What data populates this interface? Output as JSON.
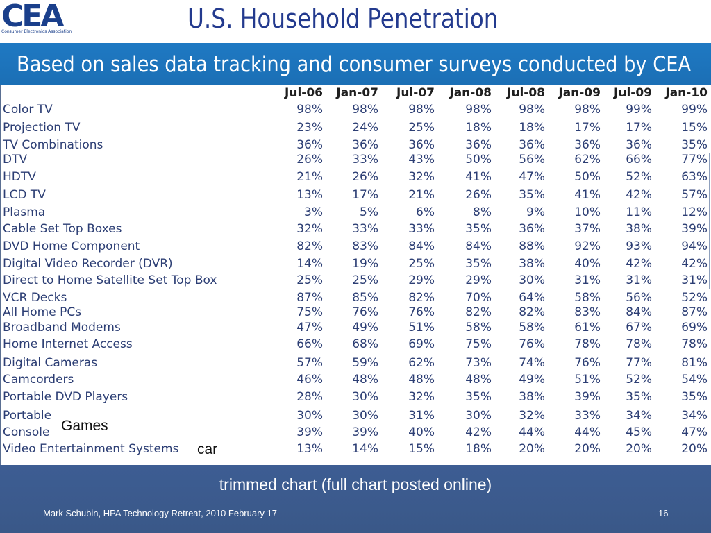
{
  "header": {
    "logo_text": "CEA",
    "logo_subtext": "Consumer Electronics Association",
    "title": "U.S. Household Penetration"
  },
  "banner": {
    "text": "Based on sales data tracking and consumer surveys conducted by CEA"
  },
  "table": {
    "columns": [
      "Jul-06",
      "Jan-07",
      "Jul-07",
      "Jan-08",
      "Jul-08",
      "Jan-09",
      "Jul-09",
      "Jan-10"
    ],
    "rows": [
      {
        "label": "Color TV",
        "values": [
          "98%",
          "98%",
          "98%",
          "98%",
          "98%",
          "98%",
          "99%",
          "99%"
        ]
      },
      {
        "label": "Projection TV",
        "values": [
          "23%",
          "24%",
          "25%",
          "18%",
          "18%",
          "17%",
          "17%",
          "15%"
        ]
      },
      {
        "label": "TV Combinations",
        "values": [
          "36%",
          "36%",
          "36%",
          "36%",
          "36%",
          "36%",
          "36%",
          "35%"
        ]
      },
      {
        "label": "DTV",
        "values": [
          "26%",
          "33%",
          "43%",
          "50%",
          "56%",
          "62%",
          "66%",
          "77%"
        ]
      },
      {
        "label": "HDTV",
        "values": [
          "21%",
          "26%",
          "32%",
          "41%",
          "47%",
          "50%",
          "52%",
          "63%"
        ]
      },
      {
        "label": "LCD TV",
        "values": [
          "13%",
          "17%",
          "21%",
          "26%",
          "35%",
          "41%",
          "42%",
          "57%"
        ]
      },
      {
        "label": "Plasma",
        "values": [
          "3%",
          "5%",
          "6%",
          "8%",
          "9%",
          "10%",
          "11%",
          "12%"
        ]
      },
      {
        "label": "Cable Set Top Boxes",
        "values": [
          "32%",
          "33%",
          "33%",
          "35%",
          "36%",
          "37%",
          "38%",
          "39%"
        ]
      },
      {
        "label": "DVD Home Component",
        "values": [
          "82%",
          "83%",
          "84%",
          "84%",
          "88%",
          "92%",
          "93%",
          "94%"
        ]
      },
      {
        "label": "Digital Video Recorder (DVR)",
        "values": [
          "14%",
          "19%",
          "25%",
          "35%",
          "38%",
          "40%",
          "42%",
          "42%"
        ]
      },
      {
        "label": "Direct to Home Satellite Set Top Box",
        "values": [
          "25%",
          "25%",
          "29%",
          "29%",
          "30%",
          "31%",
          "31%",
          "31%"
        ]
      },
      {
        "label": "VCR Decks",
        "values": [
          "87%",
          "85%",
          "82%",
          "70%",
          "64%",
          "58%",
          "56%",
          "52%"
        ]
      },
      {
        "label": "All Home PCs",
        "values": [
          "75%",
          "76%",
          "76%",
          "82%",
          "82%",
          "83%",
          "84%",
          "87%"
        ]
      },
      {
        "label": "Broadband Modems",
        "values": [
          "47%",
          "49%",
          "51%",
          "58%",
          "58%",
          "61%",
          "67%",
          "69%"
        ]
      },
      {
        "label": "Home Internet Access",
        "values": [
          "66%",
          "68%",
          "69%",
          "75%",
          "76%",
          "78%",
          "78%",
          "78%"
        ]
      },
      {
        "label": "Digital Cameras",
        "values": [
          "57%",
          "59%",
          "62%",
          "73%",
          "74%",
          "76%",
          "77%",
          "81%"
        ]
      },
      {
        "label": "Camcorders",
        "values": [
          "46%",
          "48%",
          "48%",
          "48%",
          "49%",
          "51%",
          "52%",
          "54%"
        ]
      },
      {
        "label": "Portable DVD Players",
        "values": [
          "28%",
          "30%",
          "32%",
          "35%",
          "38%",
          "39%",
          "35%",
          "35%"
        ]
      },
      {
        "label": "Portable",
        "values": [
          "30%",
          "30%",
          "31%",
          "30%",
          "32%",
          "33%",
          "34%",
          "34%"
        ]
      },
      {
        "label": "Console",
        "values": [
          "39%",
          "39%",
          "40%",
          "42%",
          "44%",
          "44%",
          "45%",
          "47%"
        ]
      },
      {
        "label": "Video Entertainment Systems",
        "values": [
          "13%",
          "14%",
          "15%",
          "18%",
          "20%",
          "20%",
          "20%",
          "20%"
        ]
      }
    ]
  },
  "annotations": {
    "games": "Games",
    "car": "car"
  },
  "footer": {
    "caption": "trimmed chart (full chart posted online)",
    "credit": "Mark Schubin, HPA Technology Retreat, 2010 February 17",
    "page_number": "16"
  },
  "colors": {
    "title": "#233a8e",
    "banner": "#1f79c3",
    "footer": "#3d5d93",
    "table_text": "#2c3e74"
  }
}
